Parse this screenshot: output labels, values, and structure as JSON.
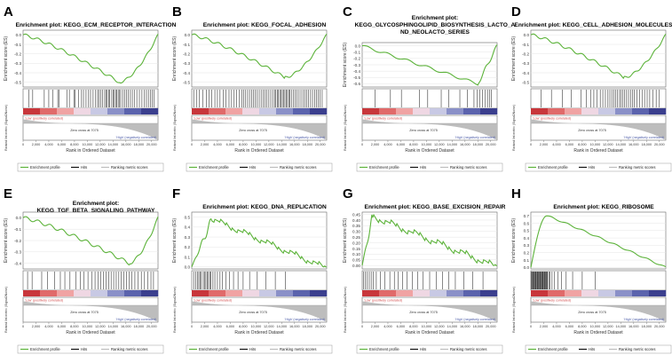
{
  "figure": {
    "colors": {
      "es_line": "#5cb33a",
      "frame": "#666666",
      "grid": "#e5e5e5",
      "hits": "#111111",
      "metric_fill": "#bdbdbd",
      "label_red": "#d24a4a",
      "label_blue": "#4a5aa8",
      "heat": [
        "#c8363b",
        "#e06a6a",
        "#f0a3a3",
        "#efd7e3",
        "#c8c9e4",
        "#8a90c8",
        "#5b63ad",
        "#3b3f8e"
      ]
    },
    "common": {
      "y_label": "Enrichment score (ES)",
      "metric_y_label": "Ranked list metric (Signal2Noise)",
      "x_label": "Rank in Ordered Dataset",
      "pos_label": "'Low' (positively correlated)",
      "neg_label": "'High' (negatively correlated)",
      "zero_cross": "Zero cross at 7075",
      "legend": [
        "Enrichment profile",
        "Hits",
        "Ranking metric scores"
      ],
      "x_ticks": [
        "0",
        "2,000",
        "4,000",
        "6,000",
        "8,000",
        "10,000",
        "12,000",
        "14,000",
        "16,000",
        "18,000",
        "20,000"
      ]
    }
  },
  "chart_data": [
    {
      "letter": "A",
      "type": "line",
      "title": "Enrichment plot: KEGG_ECM_RECEPTOR_INTERACTION",
      "title_lines": [
        "Enrichment plot: KEGG_ECM_RECEPTOR_INTERACTION"
      ],
      "xlabel": "Rank in Ordered Dataset",
      "ylabel": "Enrichment score (ES)",
      "xlim": [
        0,
        21000
      ],
      "ylim": [
        -0.55,
        0.05
      ],
      "y_ticks": [
        "0.0",
        "-0.1",
        "-0.2",
        "-0.3",
        "-0.4",
        "-0.5"
      ],
      "y_tick_values": [
        0.0,
        -0.1,
        -0.2,
        -0.3,
        -0.4,
        -0.5
      ],
      "es_min": -0.5,
      "es_peak_rank": 15000,
      "direction": "negative",
      "hits": [
        900,
        1500,
        3300,
        4000,
        4600,
        5400,
        5600,
        6800,
        7200,
        7900,
        8100,
        8600,
        9100,
        9400,
        9800,
        10200,
        10500,
        10900,
        11300,
        11600,
        11800,
        12100,
        12400,
        12700,
        12900,
        13100,
        13300,
        13500,
        13800,
        14000,
        14200,
        14400,
        14600,
        14800,
        15000,
        15200,
        15500,
        15800,
        16100,
        16400,
        16700,
        17000,
        17300,
        17700,
        18100,
        18500,
        18900,
        19200,
        19500,
        19800,
        20100,
        20400
      ]
    },
    {
      "letter": "B",
      "type": "line",
      "title": "Enrichment plot: KEGG_FOCAL_ADHESION",
      "title_lines": [
        "Enrichment plot: KEGG_FOCAL_ADHESION"
      ],
      "xlabel": "Rank in Ordered Dataset",
      "ylabel": "Enrichment score (ES)",
      "xlim": [
        0,
        21000
      ],
      "ylim": [
        -0.55,
        0.05
      ],
      "y_ticks": [
        "0.0",
        "-0.1",
        "-0.2",
        "-0.3",
        "-0.4",
        "-0.5"
      ],
      "y_tick_values": [
        0.0,
        -0.1,
        -0.2,
        -0.3,
        -0.4,
        -0.5
      ],
      "es_min": -0.45,
      "es_peak_rank": 14500,
      "direction": "negative",
      "hits": [
        300,
        800,
        1200,
        1700,
        2300,
        2700,
        3100,
        3600,
        4000,
        4400,
        4900,
        5300,
        5800,
        6200,
        6600,
        7000,
        7400,
        7800,
        8100,
        8400,
        8700,
        9000,
        9300,
        9600,
        9900,
        10200,
        10500,
        10800,
        11100,
        11400,
        11700,
        12000,
        12300,
        12600,
        12900,
        13100,
        13300,
        13500,
        13700,
        13900,
        14100,
        14300,
        14500,
        14700,
        14900,
        15100,
        15300,
        15500,
        15800,
        16100,
        16400,
        16700,
        17000,
        17300,
        17600,
        17900,
        18200,
        18500,
        18800,
        19100,
        19400,
        19700,
        20000,
        20300
      ]
    },
    {
      "letter": "C",
      "type": "line",
      "title": "Enrichment plot: KEGG_GLYCOSPHINGOLIPID_BIOSYNTHESIS_LACTO_AND_NEOLACTO_SERIES",
      "title_lines": [
        "Enrichment plot:",
        "KEGG_GLYCOSPHINGOLIPID_BIOSYNTHESIS_LACTO_A",
        "ND_NEOLACTO_SERIES"
      ],
      "xlabel": "Rank in Ordered Dataset",
      "ylabel": "Enrichment score (ES)",
      "xlim": [
        0,
        21000
      ],
      "ylim": [
        -0.65,
        0.05
      ],
      "y_ticks": [
        "0.0",
        "-0.1",
        "-0.2",
        "-0.3",
        "-0.4",
        "-0.5",
        "-0.6"
      ],
      "y_tick_values": [
        0.0,
        -0.1,
        -0.2,
        -0.3,
        -0.4,
        -0.5,
        -0.6
      ],
      "es_min": -0.6,
      "es_peak_rank": 18000,
      "direction": "negative_linear",
      "hits": [
        2000,
        4400,
        6100,
        8900,
        10200,
        12300,
        13500,
        15200,
        16400,
        17400,
        17900,
        18300,
        18700,
        19100,
        19500,
        19800,
        20100
      ]
    },
    {
      "letter": "D",
      "type": "line",
      "title": "Enrichment plot: KEGG_CELL_ADHESION_MOLECULES_CAMS",
      "title_lines": [
        "Enrichment plot: KEGG_CELL_ADHESION_MOLECULES_CAMS"
      ],
      "xlabel": "Rank in Ordered Dataset",
      "ylabel": "Enrichment score (ES)",
      "xlim": [
        0,
        21000
      ],
      "ylim": [
        -0.55,
        0.05
      ],
      "y_ticks": [
        "0.0",
        "-0.1",
        "-0.2",
        "-0.3",
        "-0.4",
        "-0.5"
      ],
      "y_tick_values": [
        0.0,
        -0.1,
        -0.2,
        -0.3,
        -0.4,
        -0.5
      ],
      "es_min": -0.45,
      "es_peak_rank": 14500,
      "direction": "negative",
      "hits": [
        1600,
        3200,
        4900,
        6300,
        7800,
        8600,
        9300,
        9800,
        10300,
        10800,
        11200,
        11600,
        12000,
        12300,
        12600,
        12900,
        13200,
        13500,
        13800,
        14000,
        14300,
        14600,
        14900,
        15200,
        15500,
        15800,
        16100,
        16500,
        16900,
        17300,
        17700,
        18100,
        18500,
        19000,
        19500,
        20000
      ]
    },
    {
      "letter": "E",
      "type": "line",
      "title": "Enrichment plot: KEGG_TGF_BETA_SIGNALING_PATHWAY",
      "title_lines": [
        "Enrichment plot:",
        "KEGG_TGF_BETA_SIGNALING_PATHWAY"
      ],
      "xlabel": "Rank in Ordered Dataset",
      "ylabel": "Enrichment score (ES)",
      "xlim": [
        0,
        21000
      ],
      "ylim": [
        -0.45,
        0.05
      ],
      "y_ticks": [
        "0.0",
        "-0.1",
        "-0.2",
        "-0.3",
        "-0.4"
      ],
      "y_tick_values": [
        0.0,
        -0.1,
        -0.2,
        -0.3,
        -0.4
      ],
      "es_min": -0.4,
      "es_peak_rank": 16500,
      "direction": "negative",
      "hits": [
        700,
        1400,
        2900,
        3800,
        4900,
        5800,
        6500,
        7300,
        8200,
        8900,
        9500,
        10100,
        10700,
        11200,
        11700,
        12100,
        12500,
        12900,
        13300,
        13700,
        14100,
        14500,
        14900,
        15300,
        15700,
        16100,
        16500,
        16900,
        17400,
        17900,
        18400,
        18900,
        19400,
        19900,
        20300
      ]
    },
    {
      "letter": "F",
      "type": "line",
      "title": "Enrichment plot: KEGG_DNA_REPLICATION",
      "title_lines": [
        "Enrichment plot: KEGG_DNA_REPLICATION"
      ],
      "xlabel": "Rank in Ordered Dataset",
      "ylabel": "Enrichment score (ES)",
      "xlim": [
        0,
        21000
      ],
      "ylim": [
        -0.02,
        0.55
      ],
      "y_ticks": [
        "0.5",
        "0.4",
        "0.3",
        "0.2",
        "0.1",
        "0.0"
      ],
      "y_tick_values": [
        0.5,
        0.4,
        0.3,
        0.2,
        0.1,
        0.0
      ],
      "es_max": 0.5,
      "es_peak_rank": 3000,
      "direction": "positive_linear",
      "hits": [
        300,
        600,
        900,
        1100,
        1300,
        1500,
        1800,
        2000,
        2200,
        2400,
        2600,
        2800,
        3000,
        3300,
        3600,
        4000,
        4400,
        4800,
        5300,
        5900,
        6500,
        7200,
        8000,
        9000,
        10200,
        11500,
        13000,
        14600
      ]
    },
    {
      "letter": "G",
      "type": "line",
      "title": "Enrichment plot: KEGG_BASE_EXCISION_REPAIR",
      "title_lines": [
        "Enrichment plot: KEGG_BASE_EXCISION_REPAIR"
      ],
      "xlabel": "Rank in Ordered Dataset",
      "ylabel": "Enrichment score (ES)",
      "xlim": [
        0,
        21000
      ],
      "ylim": [
        -0.03,
        0.47
      ],
      "y_ticks": [
        "0.45",
        "0.40",
        "0.35",
        "0.30",
        "0.25",
        "0.20",
        "0.15",
        "0.10",
        "0.05",
        "0.00"
      ],
      "y_tick_values": [
        0.45,
        0.4,
        0.35,
        0.3,
        0.25,
        0.2,
        0.15,
        0.1,
        0.05,
        0.0
      ],
      "es_max": 0.45,
      "es_peak_rank": 1500,
      "direction": "positive_linear",
      "hits": [
        200,
        500,
        800,
        1100,
        1400,
        1700,
        2200,
        2800,
        3500,
        4300,
        5000,
        5600,
        6300,
        7000,
        7800,
        8600,
        9500,
        10500,
        11500,
        12500,
        13500,
        14500,
        15800,
        17200,
        18800
      ]
    },
    {
      "letter": "H",
      "type": "line",
      "title": "Enrichment plot: KEGG_RIBOSOME",
      "title_lines": [
        "Enrichment plot: KEGG_RIBOSOME"
      ],
      "xlabel": "Rank in Ordered Dataset",
      "ylabel": "Enrichment score (ES)",
      "xlim": [
        0,
        21000
      ],
      "ylim": [
        -0.02,
        0.75
      ],
      "y_ticks": [
        "0.7",
        "0.6",
        "0.5",
        "0.4",
        "0.3",
        "0.2",
        "0.1",
        "0.0"
      ],
      "y_tick_values": [
        0.7,
        0.6,
        0.5,
        0.4,
        0.3,
        0.2,
        0.1,
        0.0
      ],
      "es_max": 0.7,
      "es_peak_rank": 2500,
      "direction": "positive",
      "hits": [
        100,
        200,
        300,
        400,
        500,
        600,
        700,
        800,
        900,
        1000,
        1100,
        1200,
        1300,
        1400,
        1500,
        1600,
        1700,
        1800,
        1900,
        2000,
        2100,
        2200,
        2300,
        2400,
        2500,
        2600,
        2800,
        3000,
        3300,
        3700,
        4200,
        4800,
        5500,
        6500,
        8000,
        10000
      ]
    }
  ]
}
